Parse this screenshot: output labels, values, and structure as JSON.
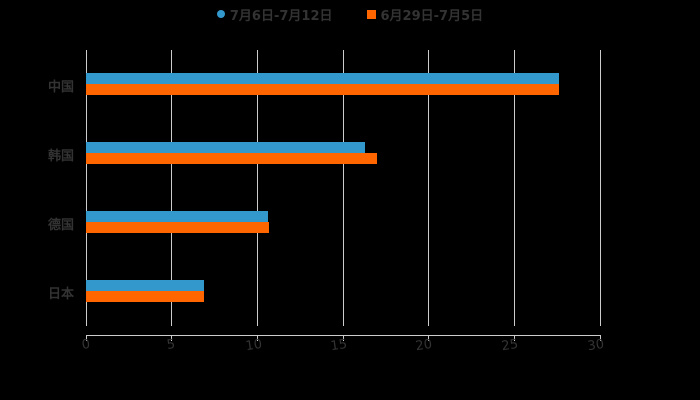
{
  "chart_data": {
    "type": "bar",
    "orientation": "horizontal",
    "title": "",
    "xlabel": "",
    "ylabel": "",
    "categories": [
      "中国",
      "韩国",
      "德国",
      "日本"
    ],
    "series": [
      {
        "name": "7月6日-7月12日",
        "color": "#3399CC",
        "values": [
          27.6,
          16.3,
          10.6,
          6.9
        ]
      },
      {
        "name": "6月29日-7月5日",
        "color": "#FF6600",
        "values": [
          27.6,
          17.0,
          10.7,
          6.9
        ]
      }
    ],
    "xlim": [
      0,
      30
    ],
    "xticks": [
      "0",
      "5",
      "10",
      "15",
      "20",
      "25",
      "30"
    ],
    "grid": true,
    "legend_position": "top"
  },
  "legend": {
    "items": [
      {
        "label": "7月6日-7月12日",
        "color": "#3399CC",
        "marker": "circle"
      },
      {
        "label": "6月29日-7月5日",
        "color": "#FF6600",
        "marker": "square"
      }
    ]
  },
  "axis": {
    "ticks": [
      "0",
      "5",
      "10",
      "15",
      "20",
      "25",
      "30"
    ]
  },
  "categories": [
    "中国",
    "韩国",
    "德国",
    "日本"
  ]
}
